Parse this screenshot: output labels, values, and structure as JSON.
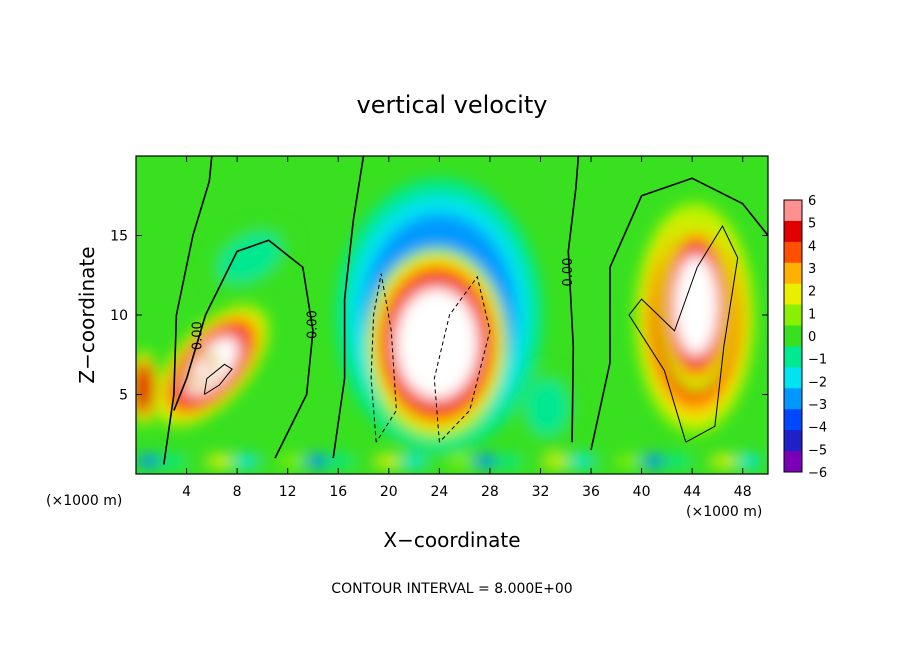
{
  "chart_data": {
    "type": "heatmap",
    "title": "vertical velocity",
    "xlabel": "X−coordinate",
    "ylabel": "Z−coordinate",
    "x_unit_left": "(×1000 m)",
    "x_unit_right": "(×1000 m)",
    "footer": "CONTOUR INTERVAL = 8.000E+00",
    "xlim": [
      0,
      50
    ],
    "ylim": [
      0,
      20
    ],
    "x_ticks": [
      4,
      8,
      12,
      16,
      20,
      24,
      28,
      32,
      36,
      40,
      44,
      48
    ],
    "x_tick_labels": [
      "4",
      "8",
      "12",
      "16",
      "20",
      "24",
      "28",
      "32",
      "36",
      "40",
      "44",
      "48"
    ],
    "y_ticks": [
      5,
      10,
      15
    ],
    "y_tick_labels": [
      "5",
      "10",
      "15"
    ],
    "colorbar": {
      "min": -6,
      "max": 6,
      "ticks": [
        6,
        5,
        4,
        3,
        2,
        1,
        0,
        -1,
        -2,
        -3,
        -4,
        -5,
        -6
      ],
      "tick_labels": [
        "6",
        "5",
        "4",
        "3",
        "2",
        "1",
        "0",
        "−1",
        "−2",
        "−3",
        "−4",
        "−5",
        "−6"
      ],
      "colors": [
        "#7a00b8",
        "#2020c8",
        "#0048ff",
        "#0098ff",
        "#00e4f0",
        "#00e890",
        "#38e020",
        "#88f000",
        "#e8f000",
        "#ffb000",
        "#ff5000",
        "#e00000",
        "#ff9090"
      ]
    },
    "contour_labels": [
      {
        "text": "0.00",
        "x": 5.2,
        "y": 8.7
      },
      {
        "text": "0.00",
        "x": 14.3,
        "y": 9.4
      },
      {
        "text": "0.00",
        "x": 34.5,
        "y": 12.7
      }
    ],
    "features": [
      {
        "kind": "updraft",
        "cx": 6.0,
        "cy": 6.8,
        "rx": 6.0,
        "ry": 2.4,
        "angle": 48,
        "w": 7
      },
      {
        "kind": "updraft",
        "cx": 5.2,
        "cy": 6.6,
        "rx": 1.6,
        "ry": 0.8,
        "angle": 48,
        "w": 9
      },
      {
        "kind": "updraft",
        "cx": 0.6,
        "cy": 5.4,
        "rx": 1.2,
        "ry": 2.4,
        "angle": 0,
        "w": 6
      },
      {
        "kind": "updraft",
        "cx": 44.2,
        "cy": 9.8,
        "rx": 4.8,
        "ry": 7.4,
        "angle": 0,
        "w": 7
      },
      {
        "kind": "updraft",
        "cx": 44.3,
        "cy": 10.6,
        "rx": 3.0,
        "ry": 5.4,
        "angle": 0,
        "w": 9
      },
      {
        "kind": "updraft",
        "cx": 23.8,
        "cy": 8.2,
        "rx": 5.6,
        "ry": 6.0,
        "angle": 0,
        "w": 9
      },
      {
        "kind": "downdraft",
        "cx": 24.0,
        "cy": 10.0,
        "rx": 8.2,
        "ry": 8.6,
        "angle": 0,
        "w": -5
      },
      {
        "kind": "downdraft",
        "cx": 32.5,
        "cy": 4.2,
        "rx": 2.5,
        "ry": 2.6,
        "angle": 0,
        "w": -2
      },
      {
        "kind": "downdraft",
        "cx": 9.0,
        "cy": 13.6,
        "rx": 4.0,
        "ry": 2.0,
        "angle": 30,
        "w": -1.2
      }
    ],
    "background_w": -0.3
  }
}
